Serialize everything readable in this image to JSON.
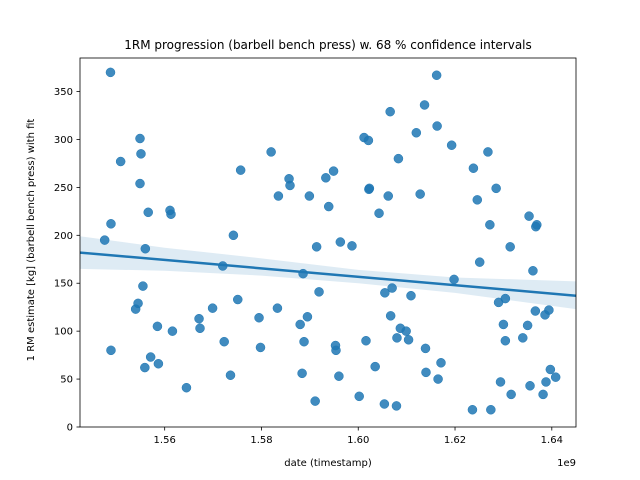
{
  "chart_data": {
    "type": "scatter",
    "title": "1RM progression (barbell bench press) w. 68 % confidence intervals",
    "xlabel": "date (timestamp)",
    "ylabel": "1 RM estimate [kg] (barbell bench press) with fit",
    "x_offset_label": "1e9",
    "xlim": [
      1.5425,
      1.645
    ],
    "ylim": [
      0,
      385
    ],
    "x_ticks": [
      1.56,
      1.58,
      1.6,
      1.62,
      1.64
    ],
    "x_tick_labels": [
      "1.56",
      "1.58",
      "1.60",
      "1.62",
      "1.64"
    ],
    "y_ticks": [
      0,
      50,
      100,
      150,
      200,
      250,
      300,
      350
    ],
    "y_tick_labels": [
      "0",
      "50",
      "100",
      "150",
      "200",
      "250",
      "300",
      "350"
    ],
    "point_color": "#1f77b4",
    "fit_line": {
      "x": [
        1.5425,
        1.645
      ],
      "y": [
        182,
        137
      ]
    },
    "confidence_band": {
      "x": [
        1.5425,
        1.56,
        1.58,
        1.6,
        1.62,
        1.645
      ],
      "lower": [
        165,
        163,
        158,
        150,
        140,
        123
      ],
      "upper": [
        199,
        187,
        176,
        164,
        156,
        152
      ]
    },
    "series": [
      {
        "points": [
          [
            1.5488,
            370
          ],
          [
            1.5489,
            212
          ],
          [
            1.5476,
            195
          ],
          [
            1.5489,
            80
          ],
          [
            1.5509,
            277
          ],
          [
            1.5549,
            301
          ],
          [
            1.5551,
            285
          ],
          [
            1.5549,
            254
          ],
          [
            1.556,
            186
          ],
          [
            1.5566,
            224
          ],
          [
            1.5555,
            147
          ],
          [
            1.5545,
            129
          ],
          [
            1.554,
            123
          ],
          [
            1.5559,
            62
          ],
          [
            1.5571,
            73
          ],
          [
            1.5585,
            105
          ],
          [
            1.5587,
            66
          ],
          [
            1.5611,
            226
          ],
          [
            1.5613,
            222
          ],
          [
            1.5616,
            100
          ],
          [
            1.5645,
            41
          ],
          [
            1.5671,
            113
          ],
          [
            1.5673,
            103
          ],
          [
            1.5699,
            124
          ],
          [
            1.572,
            168
          ],
          [
            1.5723,
            89
          ],
          [
            1.5736,
            54
          ],
          [
            1.5742,
            200
          ],
          [
            1.5751,
            133
          ],
          [
            1.5757,
            268
          ],
          [
            1.5795,
            114
          ],
          [
            1.5798,
            83
          ],
          [
            1.582,
            287
          ],
          [
            1.5835,
            241
          ],
          [
            1.5833,
            124
          ],
          [
            1.5857,
            259
          ],
          [
            1.5859,
            252
          ],
          [
            1.588,
            107
          ],
          [
            1.5884,
            56
          ],
          [
            1.5886,
            160
          ],
          [
            1.5888,
            89
          ],
          [
            1.5895,
            115
          ],
          [
            1.5899,
            241
          ],
          [
            1.5911,
            27
          ],
          [
            1.5914,
            188
          ],
          [
            1.5919,
            141
          ],
          [
            1.5933,
            260
          ],
          [
            1.5939,
            230
          ],
          [
            1.5949,
            267
          ],
          [
            1.5953,
            85
          ],
          [
            1.5954,
            80
          ],
          [
            1.596,
            53
          ],
          [
            1.5963,
            193
          ],
          [
            1.5987,
            189
          ],
          [
            1.6002,
            32
          ],
          [
            1.6012,
            302
          ],
          [
            1.6016,
            90
          ],
          [
            1.6021,
            299
          ],
          [
            1.6022,
            248
          ],
          [
            1.6023,
            249
          ],
          [
            1.6035,
            63
          ],
          [
            1.6043,
            223
          ],
          [
            1.6055,
            140
          ],
          [
            1.6054,
            24
          ],
          [
            1.6062,
            241
          ],
          [
            1.6066,
            329
          ],
          [
            1.6067,
            116
          ],
          [
            1.607,
            145
          ],
          [
            1.6079,
            22
          ],
          [
            1.608,
            93
          ],
          [
            1.6083,
            280
          ],
          [
            1.6087,
            103
          ],
          [
            1.6099,
            100
          ],
          [
            1.6104,
            91
          ],
          [
            1.6109,
            137
          ],
          [
            1.612,
            307
          ],
          [
            1.6128,
            243
          ],
          [
            1.6137,
            336
          ],
          [
            1.6139,
            82
          ],
          [
            1.614,
            57
          ],
          [
            1.6162,
            367
          ],
          [
            1.6163,
            314
          ],
          [
            1.6165,
            50
          ],
          [
            1.6171,
            67
          ],
          [
            1.6193,
            294
          ],
          [
            1.6198,
            154
          ],
          [
            1.6236,
            18
          ],
          [
            1.6238,
            270
          ],
          [
            1.6246,
            237
          ],
          [
            1.6251,
            172
          ],
          [
            1.6268,
            287
          ],
          [
            1.6272,
            211
          ],
          [
            1.6274,
            18
          ],
          [
            1.6285,
            249
          ],
          [
            1.629,
            130
          ],
          [
            1.6294,
            47
          ],
          [
            1.63,
            107
          ],
          [
            1.6304,
            134
          ],
          [
            1.6304,
            90
          ],
          [
            1.6314,
            188
          ],
          [
            1.6316,
            34
          ],
          [
            1.634,
            93
          ],
          [
            1.635,
            106
          ],
          [
            1.6353,
            220
          ],
          [
            1.6355,
            43
          ],
          [
            1.6361,
            163
          ],
          [
            1.6366,
            121
          ],
          [
            1.6367,
            209
          ],
          [
            1.6369,
            211
          ],
          [
            1.6382,
            34
          ],
          [
            1.6386,
            117
          ],
          [
            1.6388,
            47
          ],
          [
            1.6394,
            122
          ],
          [
            1.6397,
            60
          ],
          [
            1.6408,
            52
          ]
        ]
      }
    ]
  }
}
